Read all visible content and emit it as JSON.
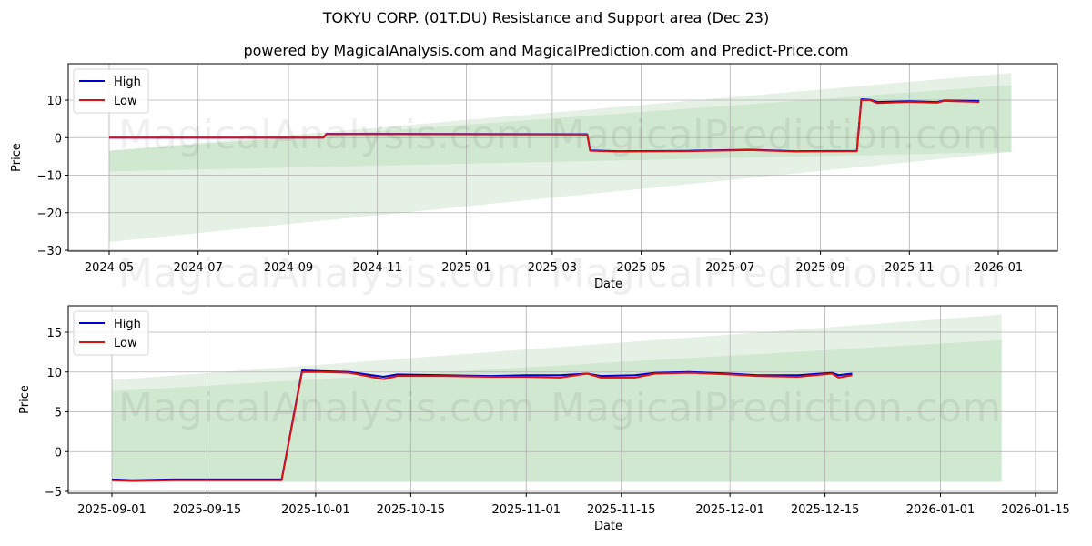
{
  "header": {
    "title": "TOKYU CORP. (01T.DU) Resistance and Support area (Dec 23)",
    "subtitle": "powered by MagicalAnalysis.com and MagicalPrediction.com and Predict-Price.com"
  },
  "watermarks": {
    "left": "MagicalAnalysis.com",
    "right": "MagicalPrediction.com"
  },
  "colors": {
    "high": "#0000cc",
    "low": "#dd1111",
    "band_dark": "#c8e3c8",
    "band_light": "#e2f0e2",
    "grid": "#b0b0b0"
  },
  "chart_data": [
    {
      "type": "line",
      "title": "",
      "xlabel": "Date",
      "ylabel": "Price",
      "grid": true,
      "legend": {
        "position": "upper left",
        "entries": [
          "High",
          "Low"
        ]
      },
      "xticks": [
        "2024-05",
        "2024-07",
        "2024-09",
        "2024-11",
        "2025-01",
        "2025-03",
        "2025-05",
        "2025-07",
        "2025-09",
        "2025-11",
        "2026-01"
      ],
      "yticks": [
        10,
        0,
        -10,
        -20,
        -30
      ],
      "ylim": [
        -30.3,
        19.7
      ],
      "x": [
        "2024-05-01",
        "2024-09-25",
        "2024-09-27",
        "2024-11-15",
        "2025-03-25",
        "2025-03-27",
        "2025-04-15",
        "2025-06-01",
        "2025-07-15",
        "2025-08-15",
        "2025-09-26",
        "2025-09-29",
        "2025-10-05",
        "2025-10-10",
        "2025-11-01",
        "2025-11-20",
        "2025-11-25",
        "2025-12-19"
      ],
      "series": [
        {
          "name": "High",
          "values": [
            0.0,
            0.0,
            1.0,
            1.0,
            0.9,
            -3.4,
            -3.6,
            -3.5,
            -3.2,
            -3.6,
            -3.5,
            10.2,
            10.1,
            9.5,
            9.7,
            9.5,
            9.9,
            9.8
          ]
        },
        {
          "name": "Low",
          "values": [
            0.0,
            0.0,
            0.9,
            0.9,
            0.8,
            -3.5,
            -3.7,
            -3.6,
            -3.3,
            -3.7,
            -3.6,
            10.0,
            10.0,
            9.2,
            9.5,
            9.3,
            9.8,
            9.5
          ]
        }
      ],
      "bands": [
        {
          "name": "support-zone-light",
          "x": [
            "2024-05-01",
            "2026-01-10"
          ],
          "upper": [
            -3.5,
            17.2
          ],
          "lower": [
            -27.8,
            -3.8
          ]
        },
        {
          "name": "support-zone-dark",
          "x": [
            "2024-05-01",
            "2026-01-10"
          ],
          "upper": [
            -3.5,
            14.0
          ],
          "lower": [
            -9.0,
            -3.8
          ]
        }
      ]
    },
    {
      "type": "line",
      "title": "",
      "xlabel": "Date",
      "ylabel": "Price",
      "grid": true,
      "legend": {
        "position": "upper left",
        "entries": [
          "High",
          "Low"
        ]
      },
      "xticks": [
        "2025-09-01",
        "2025-09-15",
        "2025-10-01",
        "2025-10-15",
        "2025-11-01",
        "2025-11-15",
        "2025-12-01",
        "2025-12-15",
        "2026-01-01",
        "2026-01-15"
      ],
      "yticks": [
        15,
        10,
        5,
        0,
        -5
      ],
      "ylim": [
        -5.2,
        18.2
      ],
      "x": [
        "2025-09-01",
        "2025-09-04",
        "2025-09-10",
        "2025-09-26",
        "2025-09-29",
        "2025-10-02",
        "2025-10-06",
        "2025-10-11",
        "2025-10-13",
        "2025-10-20",
        "2025-10-27",
        "2025-11-01",
        "2025-11-06",
        "2025-11-10",
        "2025-11-12",
        "2025-11-17",
        "2025-11-20",
        "2025-11-25",
        "2025-12-01",
        "2025-12-05",
        "2025-12-11",
        "2025-12-16",
        "2025-12-17",
        "2025-12-19"
      ],
      "series": [
        {
          "name": "High",
          "values": [
            -3.5,
            -3.6,
            -3.5,
            -3.5,
            10.2,
            10.1,
            10.0,
            9.4,
            9.7,
            9.6,
            9.5,
            9.6,
            9.6,
            9.8,
            9.5,
            9.6,
            9.9,
            10.0,
            9.8,
            9.6,
            9.6,
            9.9,
            9.6,
            9.8
          ]
        },
        {
          "name": "Low",
          "values": [
            -3.6,
            -3.7,
            -3.6,
            -3.6,
            10.0,
            10.0,
            9.9,
            9.1,
            9.5,
            9.5,
            9.4,
            9.4,
            9.3,
            9.8,
            9.3,
            9.3,
            9.8,
            9.9,
            9.7,
            9.5,
            9.4,
            9.8,
            9.3,
            9.6
          ]
        }
      ],
      "bands": [
        {
          "name": "support-zone-light",
          "x": [
            "2025-09-01",
            "2026-01-10"
          ],
          "upper": [
            9.0,
            17.2
          ],
          "lower": [
            -3.8,
            -3.8
          ]
        },
        {
          "name": "support-zone-dark",
          "x": [
            "2025-09-01",
            "2026-01-10"
          ],
          "upper": [
            7.6,
            14.0
          ],
          "lower": [
            -3.8,
            -3.8
          ]
        }
      ]
    }
  ]
}
